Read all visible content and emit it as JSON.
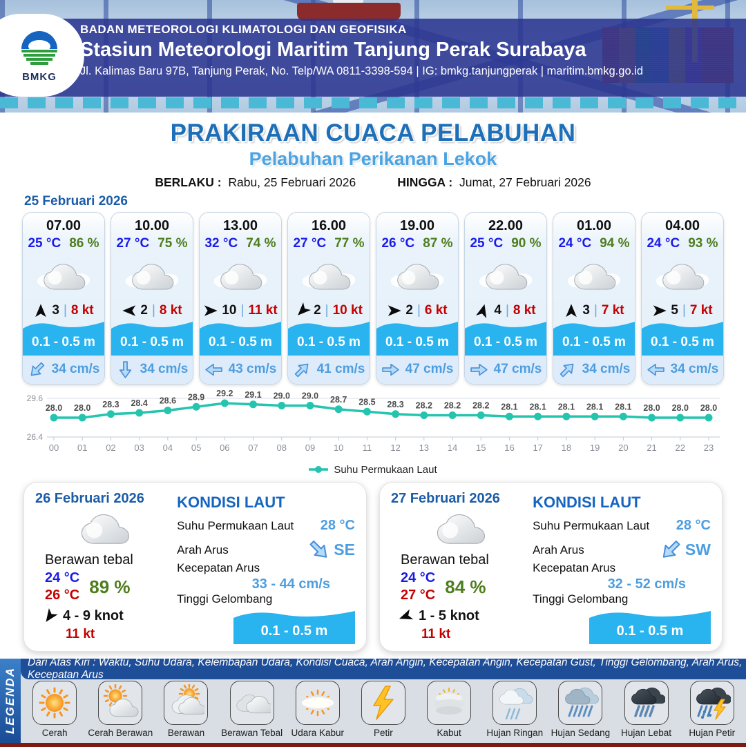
{
  "header": {
    "agency": "BADAN METEOROLOGI KLIMATOLOGI DAN GEOFISIKA",
    "station": "Stasiun Meteorologi Maritim Tanjung Perak Surabaya",
    "address": "Jl. Kalimas Baru 97B, Tanjung Perak, No. Telp/WA 0811-3398-594 | IG: bmkg.tanjungperak | maritim.bmkg.go.id",
    "logo_text": "BMKG"
  },
  "title": "PRAKIRAAN CUACA PELABUHAN",
  "subtitle": "Pelabuhan Perikanan Lekok",
  "validity": {
    "berlaku_label": "BERLAKU :",
    "berlaku_value": "Rabu, 25 Februari 2026",
    "hingga_label": "HINGGA :",
    "hingga_value": "Jumat, 27 Februari 2026"
  },
  "forecast_date": "25 Februari 2026",
  "forecast_cards": [
    {
      "time": "07.00",
      "temp": "25 °C",
      "humidity": "86 %",
      "weather_icon": "cloudy-icon",
      "wind_dir_deg": 0,
      "wind_val": "3",
      "wind_gust": "8 kt",
      "wave": "0.1 - 0.5 m",
      "current_dir_deg": 135,
      "current_speed": "34 cm/s"
    },
    {
      "time": "10.00",
      "temp": "27 °C",
      "humidity": "75 %",
      "weather_icon": "cloudy-icon",
      "wind_dir_deg": 270,
      "wind_val": "2",
      "wind_gust": "8 kt",
      "wave": "0.1 - 0.5 m",
      "current_dir_deg": 90,
      "current_speed": "34 cm/s"
    },
    {
      "time": "13.00",
      "temp": "32 °C",
      "humidity": "74 %",
      "weather_icon": "cloudy-icon",
      "wind_dir_deg": 90,
      "wind_val": "10",
      "wind_gust": "11 kt",
      "wave": "0.1 - 0.5 m",
      "current_dir_deg": 180,
      "current_speed": "43 cm/s"
    },
    {
      "time": "16.00",
      "temp": "27 °C",
      "humidity": "77 %",
      "weather_icon": "cloudy-icon",
      "wind_dir_deg": 225,
      "wind_val": "2",
      "wind_gust": "10 kt",
      "wave": "0.1 - 0.5 m",
      "current_dir_deg": -45,
      "current_speed": "41 cm/s"
    },
    {
      "time": "19.00",
      "temp": "26 °C",
      "humidity": "87 %",
      "weather_icon": "cloudy-icon",
      "wind_dir_deg": 90,
      "wind_val": "2",
      "wind_gust": "6 kt",
      "wave": "0.1 - 0.5 m",
      "current_dir_deg": 0,
      "current_speed": "47 cm/s"
    },
    {
      "time": "22.00",
      "temp": "25 °C",
      "humidity": "90 %",
      "weather_icon": "cloudy-icon",
      "wind_dir_deg": 15,
      "wind_val": "4",
      "wind_gust": "8 kt",
      "wave": "0.1 - 0.5 m",
      "current_dir_deg": 0,
      "current_speed": "47 cm/s"
    },
    {
      "time": "01.00",
      "temp": "24 °C",
      "humidity": "94 %",
      "weather_icon": "cloudy-icon",
      "wind_dir_deg": 0,
      "wind_val": "3",
      "wind_gust": "7 kt",
      "wave": "0.1 - 0.5 m",
      "current_dir_deg": -45,
      "current_speed": "34 cm/s"
    },
    {
      "time": "04.00",
      "temp": "24 °C",
      "humidity": "93 %",
      "weather_icon": "cloudy-icon",
      "wind_dir_deg": 90,
      "wind_val": "5",
      "wind_gust": "7 kt",
      "wave": "0.1 - 0.5 m",
      "current_dir_deg": 180,
      "current_speed": "34 cm/s"
    }
  ],
  "chart_data": {
    "type": "line",
    "x": [
      "00",
      "01",
      "02",
      "03",
      "04",
      "05",
      "06",
      "07",
      "08",
      "09",
      "10",
      "11",
      "12",
      "13",
      "14",
      "15",
      "16",
      "17",
      "18",
      "19",
      "20",
      "21",
      "22",
      "23"
    ],
    "series": [
      {
        "name": "Suhu Permukaan Laut",
        "values": [
          28.0,
          28.0,
          28.3,
          28.4,
          28.6,
          28.9,
          29.2,
          29.1,
          29.0,
          29.0,
          28.7,
          28.5,
          28.3,
          28.2,
          28.2,
          28.2,
          28.1,
          28.1,
          28.1,
          28.1,
          28.1,
          28.0,
          28.0,
          28.0
        ]
      }
    ],
    "title": "",
    "xlabel": "",
    "ylabel": "",
    "ylim": [
      26.4,
      29.6
    ],
    "yticks": [
      26.4,
      29.6
    ],
    "grid": true,
    "legend_position": "bottom",
    "line_color": "#24c4ae"
  },
  "day_panels": [
    {
      "date": "26 Februari 2026",
      "weather_icon": "cloudy-icon",
      "condition": "Berawan tebal",
      "temp_min": "24 °C",
      "temp_max": "26 °C",
      "humidity": "89 %",
      "wind_dir_deg": 215,
      "wind_range": "4  - 9 knot",
      "wind_gust": "11 kt",
      "sea": {
        "title": "KONDISI LAUT",
        "sst_label": "Suhu Permukaan Laut",
        "sst": "28 °C",
        "dir_label": "Arah Arus",
        "current_dir_deg": 45,
        "current_dir": "SE",
        "speed_label": "Kecepatan Arus",
        "current_speed": "33  - 44 cm/s",
        "wave_label": "Tinggi Gelombang",
        "wave": "0.1 - 0.5 m"
      }
    },
    {
      "date": "27 Februari 2026",
      "weather_icon": "cloudy-icon",
      "condition": "Berawan tebal",
      "temp_min": "24 °C",
      "temp_max": "27 °C",
      "humidity": "84 %",
      "wind_dir_deg": 250,
      "wind_range": "1  - 5 knot",
      "wind_gust": "11 kt",
      "sea": {
        "title": "KONDISI LAUT",
        "sst_label": "Suhu Permukaan Laut",
        "sst": "28 °C",
        "dir_label": "Arah Arus",
        "current_dir_deg": 135,
        "current_dir": "SW",
        "speed_label": "Kecepatan Arus",
        "current_speed": "32 - 52 cm/s",
        "wave_label": "Tinggi Gelombang",
        "wave": "0.1 - 0.5 m"
      }
    }
  ],
  "legend": {
    "title": "LEGENDA",
    "description": "Dari Atas Kiri : Waktu, Suhu Udara, Kelembapan Udara, Kondisi Cuaca, Arah Angin, Kecepatan Angin, Kecepatan Gust, Tinggi Gelombang, Arah Arus, Kecepatan Arus",
    "items": [
      {
        "icon": "cerah-icon",
        "label": "Cerah"
      },
      {
        "icon": "cerah-berawan-icon",
        "label": "Cerah Berawan"
      },
      {
        "icon": "berawan-icon",
        "label": "Berawan"
      },
      {
        "icon": "berawan-tebal-icon",
        "label": "Berawan Tebal"
      },
      {
        "icon": "udara-kabur-icon",
        "label": "Udara Kabur"
      },
      {
        "icon": "petir-icon",
        "label": "Petir"
      },
      {
        "icon": "kabut-icon",
        "label": "Kabut"
      },
      {
        "icon": "hujan-ringan-icon",
        "label": "Hujan Ringan"
      },
      {
        "icon": "hujan-sedang-icon",
        "label": "Hujan Sedang"
      },
      {
        "icon": "hujan-lebat-icon",
        "label": "Hujan Lebat"
      },
      {
        "icon": "hujan-petir-icon",
        "label": "Hujan Petir"
      }
    ]
  },
  "colors": {
    "accent_blue": "#1d6fb8",
    "light_blue": "#4aa3e3",
    "temp_blue": "#1b1be8",
    "humidity_green": "#4e7d1d",
    "gust_red": "#c40000",
    "wave_cyan": "#29b4ef",
    "current_blue": "#4d9ee0",
    "chart_teal": "#24c4ae",
    "overlay_navy": "#2b3690",
    "legend_navy": "#1f4e99",
    "bottom_maroon": "#7d1a12"
  }
}
